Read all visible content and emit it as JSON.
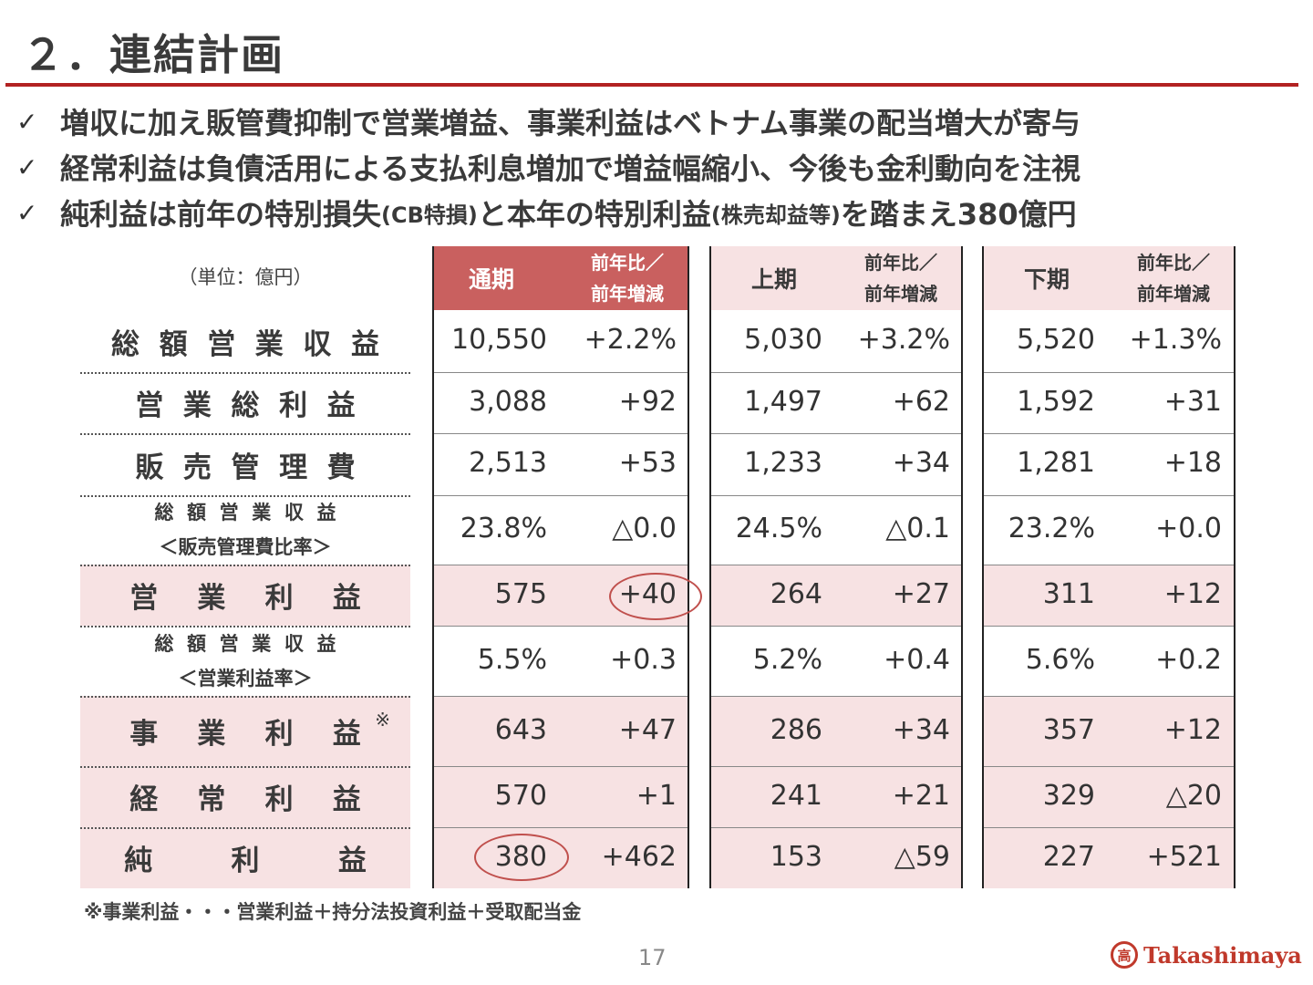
{
  "title": "２．連結計画",
  "bullets": [
    {
      "text": "増収に加え販管費抑制で営業増益、事業利益はベトナム事業の配当増大が寄与"
    },
    {
      "text": "経常利益は負債活用による支払利息増加で増益幅縮小、今後も金利動向を注視"
    },
    {
      "text_a": "純利益は前年の特別損失",
      "paren_a": "(CB特損)",
      "text_b": "と本年の特別利益",
      "paren_b": "(株売却益等)",
      "text_c": "を踏まえ380億円"
    }
  ],
  "table": {
    "unit": "（単位：億円）",
    "headers": [
      {
        "period": "通期",
        "sub1": "前年比／",
        "sub2": "前年増減"
      },
      {
        "period": "上期",
        "sub1": "前年比／",
        "sub2": "前年増減"
      },
      {
        "period": "下期",
        "sub1": "前年比／",
        "sub2": "前年増減"
      }
    ],
    "rows": [
      {
        "label": "総額営業収益",
        "values": [
          "10,550",
          "+2.2%",
          "5,030",
          "+3.2%",
          "5,520",
          "+1.3%"
        ]
      },
      {
        "label": "営業総利益",
        "values": [
          "3,088",
          "+92",
          "1,497",
          "+62",
          "1,592",
          "+31"
        ]
      },
      {
        "label": "販売管理費",
        "values": [
          "2,513",
          "+53",
          "1,233",
          "+34",
          "1,281",
          "+18"
        ]
      },
      {
        "label1": "総額営業収益",
        "label2": "＜販売管理費比率＞",
        "values": [
          "23.8%",
          "△0.0",
          "24.5%",
          "△0.1",
          "23.2%",
          "+0.0"
        ]
      },
      {
        "label": "営業利益",
        "values": [
          "575",
          "+40",
          "264",
          "+27",
          "311",
          "+12"
        ]
      },
      {
        "label1": "総額営業収益",
        "label2": "＜営業利益率＞",
        "values": [
          "5.5%",
          "+0.3",
          "5.2%",
          "+0.4",
          "5.6%",
          "+0.2"
        ]
      },
      {
        "label": "事業利益",
        "mark": "※",
        "values": [
          "643",
          "+47",
          "286",
          "+34",
          "357",
          "+12"
        ]
      },
      {
        "label": "経常利益",
        "values": [
          "570",
          "+1",
          "241",
          "+21",
          "329",
          "△20"
        ]
      },
      {
        "label": "純利益",
        "values": [
          "380",
          "+462",
          "153",
          "△59",
          "227",
          "+521"
        ]
      }
    ]
  },
  "footnote": "※事業利益・・・営業利益＋持分法投資利益＋受取配当金",
  "page_number": "17",
  "logo": {
    "mark": "高",
    "text": "Takashimaya"
  },
  "colors": {
    "accent": "#b22222",
    "header_fill": "#c9605f",
    "band_fill": "#f7e2e3"
  }
}
